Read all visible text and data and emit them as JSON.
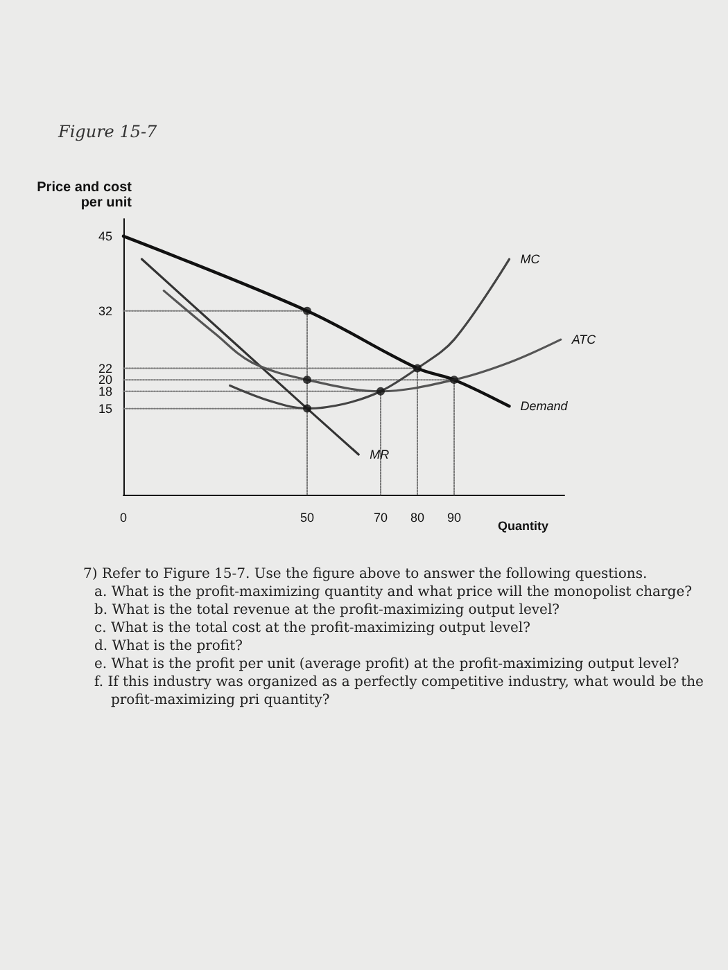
{
  "chart_data": {
    "type": "line",
    "title": "Figure 15-7",
    "xlabel": "Quantity",
    "ylabel": "Price and cost per unit",
    "xlim": [
      0,
      120
    ],
    "ylim": [
      0,
      48
    ],
    "xticks": [
      0,
      50,
      70,
      80,
      90
    ],
    "yticks": [
      15,
      18,
      20,
      22,
      32,
      45
    ],
    "grid": false,
    "legend": false,
    "marker": "none",
    "line_style": "solid",
    "series": [
      {
        "name": "Demand",
        "color": "#111111",
        "x": [
          0,
          50,
          80,
          90,
          105
        ],
        "values": [
          45,
          32,
          22,
          20,
          15.4
        ]
      },
      {
        "name": "MR",
        "color": "#333333",
        "x": [
          5,
          50,
          64
        ],
        "values": [
          41,
          15,
          7
        ]
      },
      {
        "name": "MC",
        "color": "#444444",
        "x": [
          29,
          40,
          50,
          60,
          70,
          80,
          90,
          105
        ],
        "values": [
          19,
          16.3,
          15,
          15.8,
          18,
          22,
          27,
          41
        ]
      },
      {
        "name": "ATC",
        "color": "#555555",
        "x": [
          11,
          25,
          35,
          50,
          70,
          90,
          105,
          119
        ],
        "values": [
          35.5,
          28,
          23,
          20,
          18,
          20,
          23,
          27
        ]
      },
      {
        "color": "#777777",
        "line_style": "dotted",
        "x": [
          0,
          50,
          50
        ],
        "values": [
          32,
          32,
          0
        ]
      },
      {
        "color": "#777777",
        "line_style": "dotted",
        "x": [
          0,
          50
        ],
        "values": [
          20,
          20
        ]
      },
      {
        "color": "#777777",
        "line_style": "dotted",
        "x": [
          0,
          50
        ],
        "values": [
          15,
          15
        ]
      },
      {
        "color": "#777777",
        "line_style": "dotted",
        "x": [
          0,
          70,
          70
        ],
        "values": [
          18,
          18,
          0
        ]
      },
      {
        "color": "#777777",
        "line_style": "dotted",
        "x": [
          0,
          80,
          80
        ],
        "values": [
          22,
          22,
          0
        ]
      },
      {
        "color": "#777777",
        "line_style": "dotted",
        "x": [
          50,
          90,
          90
        ],
        "values": [
          20,
          20,
          0
        ]
      },
      {
        "type": "scatter",
        "marker": "circle",
        "color": "#111111",
        "x": [
          50,
          50,
          50,
          70,
          80,
          90
        ],
        "values": [
          32,
          20,
          15,
          18,
          22,
          20
        ]
      }
    ],
    "annotations": [
      "7) Refer to Figure 15-7. Use the figure above to answer the following questions.",
      "a. What is the profit-maximizing quantity and what price will the monopolist charge?",
      "b. What is the total revenue at the profit-maximizing output level?",
      "c. What is the total cost at the profit-maximizing output level?",
      "d. What is the profit?",
      "e. What is the profit per unit (average profit) at the profit-maximizing output level?",
      "f. If this industry was organized as a perfectly competitive industry, what would be the profit-maximizing pri quantity?"
    ]
  }
}
